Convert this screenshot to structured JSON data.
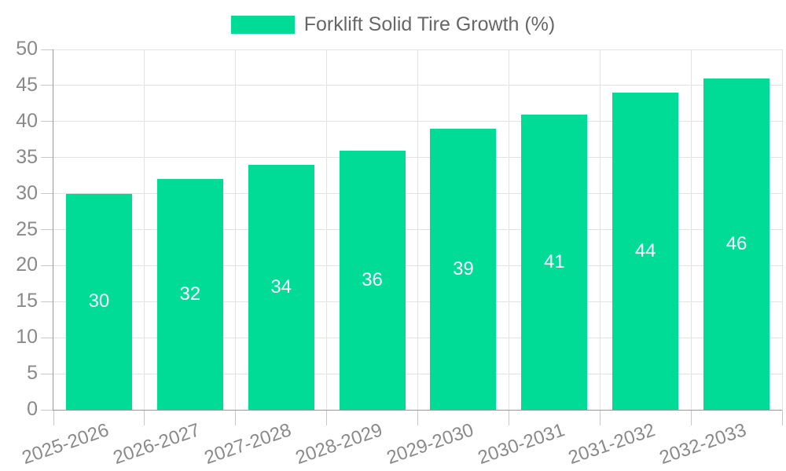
{
  "chart_data": {
    "type": "bar",
    "title": "Forklift Solid Tire Growth (%)",
    "categories": [
      "2025-2026",
      "2026-2027",
      "2027-2028",
      "2028-2029",
      "2029-2030",
      "2030-2031",
      "2031-2032",
      "2032-2033"
    ],
    "values": [
      30,
      32,
      34,
      36,
      39,
      41,
      44,
      46
    ],
    "series": [
      {
        "name": "Forklift Solid Tire Growth (%)",
        "values": [
          30,
          32,
          34,
          36,
          39,
          41,
          44,
          46
        ]
      }
    ],
    "xlabel": "",
    "ylabel": "",
    "ylim": [
      0,
      50
    ],
    "yticks": [
      0,
      5,
      10,
      15,
      20,
      25,
      30,
      35,
      40,
      45,
      50
    ],
    "grid": true,
    "legend_position": "top-center",
    "value_labels_shown": true
  },
  "legend": {
    "label": "Forklift Solid Tire Growth (%)"
  },
  "colors": {
    "bar": "#00DC96",
    "value_label": "#FFFFFF",
    "axis_label": "#8A8A8A",
    "legend_text": "#676767",
    "gridline": "#E3E3E3",
    "axis_line": "#999999",
    "tick": "#C9C9C9",
    "background": "#FFFFFF"
  }
}
